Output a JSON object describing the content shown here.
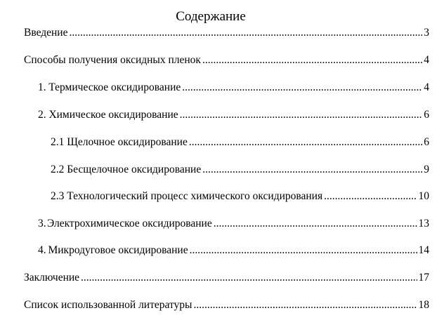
{
  "title": "Содержание",
  "entries": [
    {
      "num": "",
      "text": "Введение",
      "page": "3",
      "indent": 0
    },
    {
      "num": "",
      "text": "Способы получения оксидных пленок",
      "page": "4",
      "indent": 0
    },
    {
      "num": "1.",
      "text": "Термическое оксидирование ",
      "page": "4",
      "indent": 1
    },
    {
      "num": "2.",
      "text": "Химическое оксидирование",
      "page": "6",
      "indent": 1
    },
    {
      "num": "",
      "text": "2.1 Щелочное оксидирование",
      "page": "6",
      "indent": 2
    },
    {
      "num": "",
      "text": "2.2 Бесщелочное оксидирование",
      "page": "9",
      "indent": 2
    },
    {
      "num": "",
      "text": "2.3 Технологический процесс химического оксидирования",
      "page": "10",
      "indent": 2
    },
    {
      "num": "3.",
      "text": "Электрохимическое оксидирование",
      "page": "13",
      "indent": 1
    },
    {
      "num": "4.",
      "text": "Микродуговое оксидирование",
      "page": "14",
      "indent": 1
    },
    {
      "num": "",
      "text": "Заключение",
      "page": "17",
      "indent": 0
    },
    {
      "num": "",
      "text": "Список использованной литературы",
      "page": "18",
      "indent": 0
    }
  ]
}
